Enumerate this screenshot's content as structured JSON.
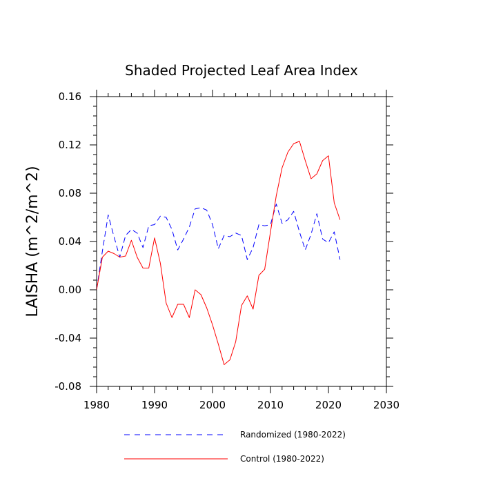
{
  "chart_data": {
    "type": "line",
    "title": "Shaded Projected Leaf Area Index",
    "xlabel": "",
    "ylabel": "LAISHA  (m^2/m^2)",
    "xlim": [
      1980,
      2030
    ],
    "ylim": [
      -0.08,
      0.16
    ],
    "x_ticks": [
      1980,
      1990,
      2000,
      2010,
      2020,
      2030
    ],
    "x_tick_labels": [
      "1980",
      "1990",
      "2000",
      "2010",
      "2020",
      "2030"
    ],
    "y_ticks": [
      -0.08,
      -0.04,
      0.0,
      0.04,
      0.08,
      0.12,
      0.16
    ],
    "y_tick_labels": [
      "-0.08",
      "-0.04",
      "0.00",
      "0.04",
      "0.08",
      "0.12",
      "0.16"
    ],
    "x": [
      1980,
      1981,
      1982,
      1983,
      1984,
      1985,
      1986,
      1987,
      1988,
      1989,
      1990,
      1991,
      1992,
      1993,
      1994,
      1995,
      1996,
      1997,
      1998,
      1999,
      2000,
      2001,
      2002,
      2003,
      2004,
      2005,
      2006,
      2007,
      2008,
      2009,
      2010,
      2011,
      2012,
      2013,
      2014,
      2015,
      2016,
      2017,
      2018,
      2019,
      2020,
      2021,
      2022
    ],
    "series": [
      {
        "name": "Randomized (1980-2022)",
        "color": "#0000ff",
        "style": "dashed",
        "values": [
          0.0,
          0.032,
          0.062,
          0.044,
          0.027,
          0.045,
          0.05,
          0.047,
          0.035,
          0.053,
          0.054,
          0.061,
          0.06,
          0.05,
          0.033,
          0.042,
          0.052,
          0.067,
          0.068,
          0.066,
          0.054,
          0.034,
          0.045,
          0.044,
          0.047,
          0.045,
          0.025,
          0.035,
          0.054,
          0.053,
          0.054,
          0.071,
          0.055,
          0.058,
          0.065,
          0.048,
          0.033,
          0.046,
          0.063,
          0.042,
          0.039,
          0.048,
          0.025
        ]
      },
      {
        "name": "Control (1980-2022)",
        "color": "#ff0000",
        "style": "solid",
        "values": [
          0.0,
          0.027,
          0.032,
          0.03,
          0.027,
          0.028,
          0.041,
          0.027,
          0.018,
          0.018,
          0.043,
          0.022,
          -0.011,
          -0.023,
          -0.012,
          -0.012,
          -0.023,
          0.0,
          -0.004,
          -0.015,
          -0.029,
          -0.045,
          -0.062,
          -0.058,
          -0.043,
          -0.013,
          -0.005,
          -0.016,
          0.012,
          0.017,
          0.048,
          0.078,
          0.101,
          0.114,
          0.121,
          0.123,
          0.107,
          0.092,
          0.096,
          0.107,
          0.111,
          0.072,
          0.058
        ]
      }
    ],
    "legend_position": "bottom",
    "grid": false
  }
}
